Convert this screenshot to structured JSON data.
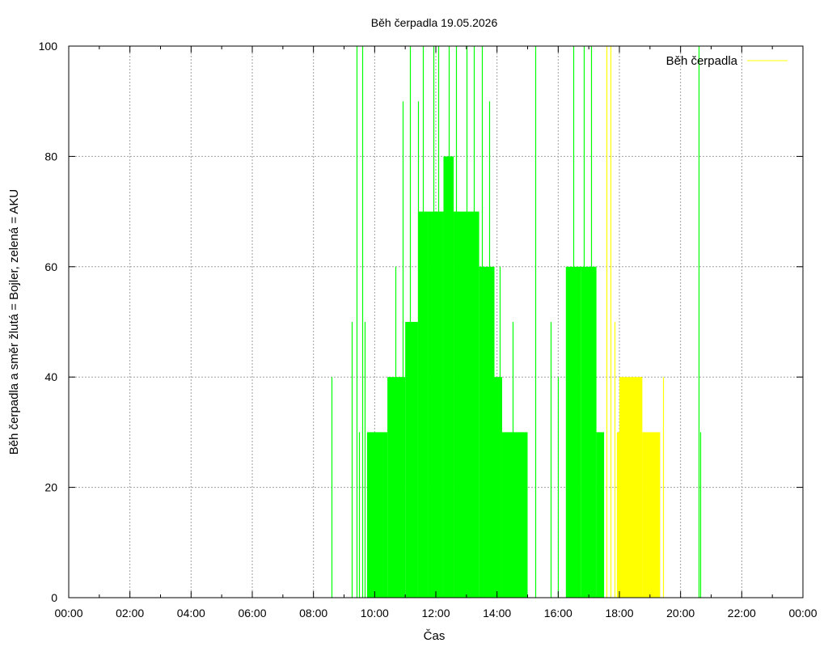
{
  "chart_data": {
    "type": "bar",
    "title": "Běh čerpadla 19.05.2026",
    "xlabel": "Čas",
    "ylabel": "Běh čerpadla a směr žlutá = Bojler, zelená = AKU",
    "xlim_hours": [
      0,
      24
    ],
    "ylim": [
      0,
      100
    ],
    "x_ticks": [
      "00:00",
      "02:00",
      "04:00",
      "06:00",
      "08:00",
      "10:00",
      "12:00",
      "14:00",
      "16:00",
      "18:00",
      "20:00",
      "22:00",
      "00:00"
    ],
    "y_ticks": [
      "0",
      "20",
      "40",
      "60",
      "80",
      "100"
    ],
    "grid": true,
    "legend": {
      "position": "top-right",
      "label": "Běh čerpadla"
    },
    "colors": {
      "aku": "#00ff00",
      "bojler": "#ffff00",
      "grid": "#a0a0a0",
      "axis": "#000000"
    },
    "series": [
      {
        "name": "Běh čerpadla",
        "color_key": "bojler",
        "blocks": [
          {
            "from": "17:55",
            "to": "18:00",
            "value": 30
          },
          {
            "from": "18:00",
            "to": "18:45",
            "value": 40
          },
          {
            "from": "18:45",
            "to": "19:20",
            "value": 30
          }
        ],
        "spikes": [
          {
            "time": "17:35",
            "value": 100
          },
          {
            "time": "17:42",
            "value": 100
          },
          {
            "time": "17:50",
            "value": 50
          },
          {
            "time": "18:30",
            "value": 40
          },
          {
            "time": "18:42",
            "value": 40
          },
          {
            "time": "19:25",
            "value": 40
          }
        ]
      },
      {
        "name": "",
        "color_key": "aku",
        "blocks": [
          {
            "from": "09:45",
            "to": "10:25",
            "value": 30
          },
          {
            "from": "10:25",
            "to": "11:00",
            "value": 40
          },
          {
            "from": "11:00",
            "to": "11:25",
            "value": 50
          },
          {
            "from": "11:25",
            "to": "11:45",
            "value": 70
          },
          {
            "from": "11:45",
            "to": "12:15",
            "value": 70
          },
          {
            "from": "12:15",
            "to": "12:35",
            "value": 80
          },
          {
            "from": "12:35",
            "to": "13:25",
            "value": 70
          },
          {
            "from": "13:25",
            "to": "13:55",
            "value": 60
          },
          {
            "from": "13:55",
            "to": "14:10",
            "value": 40
          },
          {
            "from": "14:10",
            "to": "15:00",
            "value": 30
          },
          {
            "from": "16:15",
            "to": "16:45",
            "value": 60
          },
          {
            "from": "16:45",
            "to": "17:15",
            "value": 60
          },
          {
            "from": "17:15",
            "to": "17:30",
            "value": 30
          }
        ],
        "spikes": [
          {
            "time": "08:35",
            "value": 40
          },
          {
            "time": "09:15",
            "value": 50
          },
          {
            "time": "09:25",
            "value": 100
          },
          {
            "time": "09:30",
            "value": 30
          },
          {
            "time": "09:35",
            "value": 100
          },
          {
            "time": "09:40",
            "value": 50
          },
          {
            "time": "10:40",
            "value": 60
          },
          {
            "time": "10:55",
            "value": 90
          },
          {
            "time": "11:10",
            "value": 100
          },
          {
            "time": "11:25",
            "value": 90
          },
          {
            "time": "11:35",
            "value": 100
          },
          {
            "time": "11:55",
            "value": 100
          },
          {
            "time": "12:05",
            "value": 100
          },
          {
            "time": "12:25",
            "value": 100
          },
          {
            "time": "12:40",
            "value": 100
          },
          {
            "time": "13:00",
            "value": 100
          },
          {
            "time": "13:15",
            "value": 100
          },
          {
            "time": "13:30",
            "value": 100
          },
          {
            "time": "13:45",
            "value": 90
          },
          {
            "time": "14:05",
            "value": 60
          },
          {
            "time": "14:30",
            "value": 50
          },
          {
            "time": "15:15",
            "value": 100
          },
          {
            "time": "15:45",
            "value": 50
          },
          {
            "time": "16:00",
            "value": 40
          },
          {
            "time": "16:30",
            "value": 100
          },
          {
            "time": "16:50",
            "value": 100
          },
          {
            "time": "17:05",
            "value": 100
          },
          {
            "time": "20:35",
            "value": 100
          },
          {
            "time": "20:38",
            "value": 30
          }
        ]
      }
    ]
  }
}
